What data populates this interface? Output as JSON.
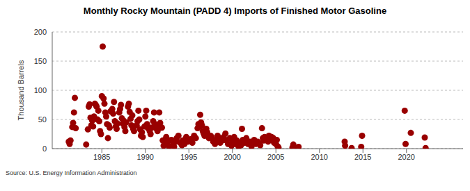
{
  "chart_data": {
    "type": "scatter",
    "title": "Monthly Rocky Mountain (PADD 4) Imports of Finished Motor Gasoline",
    "y_label": "Thousand Barrels",
    "source": "Source: U.S. Energy Information Administration",
    "color": "#990000",
    "marker": "circle",
    "grid": true,
    "xlim": [
      1979.3,
      2026.5
    ],
    "xticks": [
      1985,
      1990,
      1995,
      2000,
      2005,
      2010,
      2015,
      2020
    ],
    "ylim": [
      0,
      200
    ],
    "yticks": [
      0,
      50,
      100,
      150,
      200
    ],
    "x": [
      1981.2,
      1981.3,
      1981.4,
      1981.6,
      1981.7,
      1981.8,
      1981.9,
      1982.0,
      1983.2,
      1983.4,
      1983.5,
      1983.6,
      1983.7,
      1983.8,
      1983.9,
      1984.0,
      1984.1,
      1984.2,
      1984.3,
      1984.4,
      1984.5,
      1984.6,
      1984.7,
      1984.8,
      1984.9,
      1985.0,
      1985.1,
      1985.2,
      1985.3,
      1985.4,
      1985.5,
      1985.6,
      1985.7,
      1985.8,
      1985.9,
      1986.0,
      1986.2,
      1986.3,
      1986.4,
      1986.5,
      1986.6,
      1986.7,
      1986.8,
      1987.0,
      1987.1,
      1987.2,
      1987.3,
      1987.4,
      1987.5,
      1987.6,
      1987.7,
      1987.8,
      1988.0,
      1988.1,
      1988.2,
      1988.3,
      1988.4,
      1988.5,
      1988.6,
      1988.7,
      1989.0,
      1989.1,
      1989.2,
      1989.3,
      1989.4,
      1989.5,
      1989.6,
      1989.7,
      1989.9,
      1990.0,
      1990.1,
      1990.2,
      1990.3,
      1990.5,
      1990.6,
      1990.7,
      1990.9,
      1991.0,
      1991.1,
      1991.2,
      1991.3,
      1991.4,
      1991.6,
      1991.7,
      1991.8,
      1991.9,
      1992.0,
      1992.1,
      1992.2,
      1992.3,
      1992.4,
      1992.5,
      1992.7,
      1992.8,
      1993.0,
      1993.2,
      1993.3,
      1993.5,
      1993.6,
      1993.8,
      1994.0,
      1994.2,
      1994.3,
      1994.5,
      1994.7,
      1994.9,
      1995.0,
      1995.2,
      1995.4,
      1995.6,
      1995.8,
      1996.0,
      1996.1,
      1996.2,
      1996.3,
      1996.4,
      1996.5,
      1996.6,
      1996.7,
      1996.8,
      1997.0,
      1997.1,
      1997.3,
      1997.5,
      1997.6,
      1997.8,
      1998.0,
      1998.1,
      1998.3,
      1998.5,
      1998.6,
      1998.8,
      1999.0,
      1999.2,
      1999.3,
      1999.5,
      1999.7,
      1999.9,
      2000.0,
      2000.2,
      2000.3,
      2000.5,
      2000.7,
      2000.9,
      2001.0,
      2001.1,
      2001.2,
      2001.4,
      2001.6,
      2001.8,
      2002.0,
      2002.2,
      2002.4,
      2002.5,
      2002.7,
      2002.9,
      2003.0,
      2003.2,
      2003.4,
      2003.5,
      2003.6,
      2003.7,
      2003.9,
      2004.0,
      2004.1,
      2004.2,
      2004.3,
      2004.5,
      2004.6,
      2004.7,
      2004.8,
      2005.0,
      2005.1,
      2005.2,
      2005.3,
      2006.9,
      2007.0,
      2007.2,
      2007.6,
      2012.9,
      2012.95,
      2013.7,
      2014.8,
      2014.9,
      2019.8,
      2019.9,
      2020.5,
      2022.1,
      2022.2
    ],
    "values": [
      12,
      8,
      14,
      37,
      44,
      62,
      87,
      35,
      7,
      33,
      72,
      76,
      53,
      40,
      48,
      38,
      55,
      77,
      75,
      72,
      50,
      65,
      47,
      30,
      25,
      90,
      175,
      86,
      77,
      62,
      55,
      42,
      18,
      40,
      36,
      64,
      68,
      60,
      80,
      47,
      38,
      34,
      43,
      62,
      68,
      75,
      52,
      43,
      48,
      37,
      30,
      45,
      72,
      77,
      63,
      51,
      40,
      57,
      34,
      30,
      40,
      47,
      65,
      50,
      33,
      22,
      28,
      20,
      38,
      55,
      65,
      42,
      35,
      30,
      25,
      36,
      47,
      62,
      42,
      35,
      38,
      30,
      62,
      44,
      36,
      36,
      14,
      5,
      12,
      8,
      20,
      10,
      4,
      14,
      15,
      7,
      3,
      12,
      18,
      22,
      10,
      6,
      14,
      8,
      20,
      12,
      15,
      16,
      10,
      22,
      18,
      35,
      42,
      38,
      58,
      45,
      40,
      30,
      26,
      22,
      34,
      28,
      18,
      22,
      20,
      12,
      8,
      15,
      22,
      18,
      10,
      14,
      20,
      26,
      14,
      8,
      18,
      5,
      12,
      20,
      8,
      14,
      4,
      10,
      6,
      34,
      15,
      10,
      18,
      8,
      12,
      4,
      10,
      15,
      8,
      12,
      10,
      6,
      35,
      18,
      14,
      20,
      15,
      18,
      12,
      22,
      16,
      20,
      14,
      18,
      10,
      8,
      15,
      4,
      2,
      2,
      7,
      1,
      3,
      12,
      5,
      1,
      3,
      22,
      65,
      8,
      27,
      19,
      1
    ]
  }
}
